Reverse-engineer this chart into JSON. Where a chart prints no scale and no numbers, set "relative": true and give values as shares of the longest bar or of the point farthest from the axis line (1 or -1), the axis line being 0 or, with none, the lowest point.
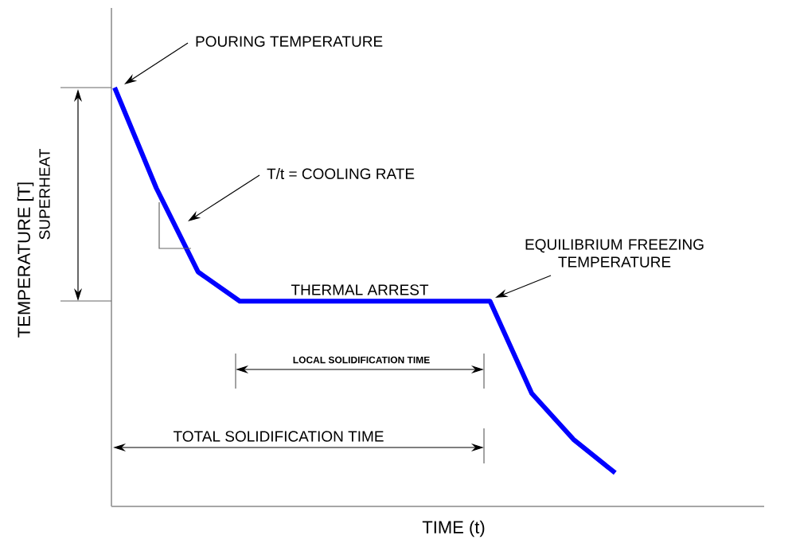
{
  "chart_data": {
    "type": "line",
    "relative": true,
    "xlabel": "TIME (t)",
    "ylabel": "TEMPERATURE [T]",
    "categories": [
      null,
      null,
      null,
      null,
      null,
      null,
      null,
      null,
      null,
      null,
      null,
      null,
      null
    ],
    "series": [
      {
        "color": "#0000ff",
        "values": [
          1,
          0.76,
          0.56,
          0.49,
          0.49,
          0.49,
          0.49,
          0.49,
          0.49,
          0.49,
          0.27,
          0.16,
          0.08
        ]
      }
    ],
    "annotations": [
      "POURING TEMPERATURE",
      "T/t = COOLING RATE",
      "SUPERHEAT",
      "THERMAL ARREST",
      "EQUILIBRIUM FREEZING TEMPERATURE",
      "LOCAL SOLIDIFICATION TIME",
      "TOTAL SOLIDIFICATION TIME"
    ],
    "marker": "none",
    "line_style": "solid"
  }
}
